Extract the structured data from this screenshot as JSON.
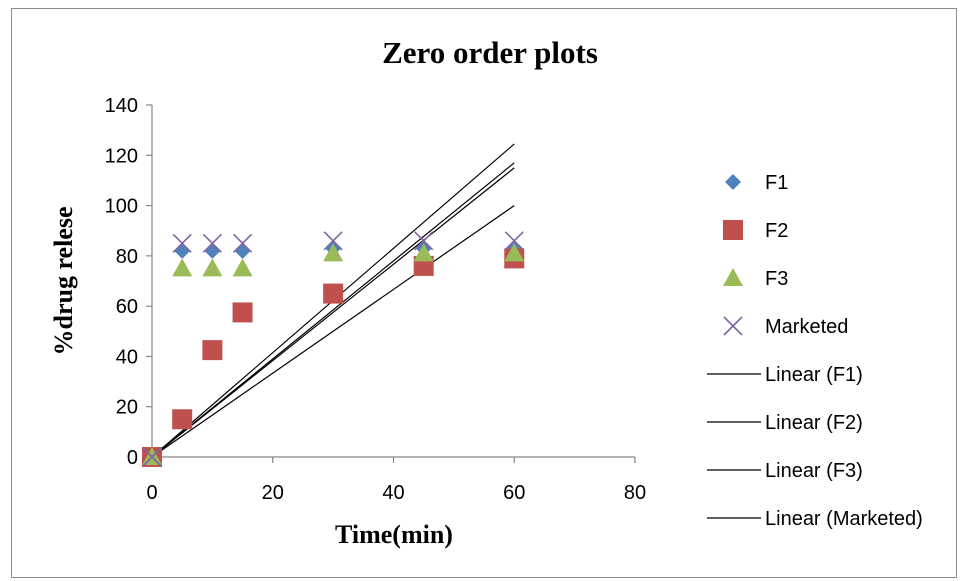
{
  "chart_data": {
    "type": "scatter",
    "title": "Zero order plots",
    "xlabel": "Time(min)",
    "ylabel": "%drug relese",
    "xlim": [
      0,
      80
    ],
    "ylim": [
      0,
      140
    ],
    "xticks": [
      0,
      20,
      40,
      60,
      80
    ],
    "yticks": [
      0,
      20,
      40,
      60,
      80,
      100,
      120,
      140
    ],
    "grid": false,
    "legend_position": "right",
    "series": [
      {
        "name": "F1",
        "marker": "diamond",
        "color": "#4f81bd",
        "x": [
          0,
          5,
          10,
          15,
          30,
          45,
          60
        ],
        "y": [
          0,
          82,
          82,
          82,
          83,
          83,
          83
        ]
      },
      {
        "name": "F2",
        "marker": "square",
        "color": "#c0504d",
        "x": [
          0,
          5,
          10,
          15,
          30,
          45,
          60
        ],
        "y": [
          0,
          15,
          42.5,
          57.5,
          65,
          76,
          79
        ]
      },
      {
        "name": "F3",
        "marker": "triangle",
        "color": "#9bbb59",
        "x": [
          0,
          5,
          10,
          15,
          30,
          45,
          60
        ],
        "y": [
          0,
          75,
          75,
          75,
          81,
          81,
          81
        ]
      },
      {
        "name": "Marketed",
        "marker": "x",
        "color": "#8064a2",
        "x": [
          0,
          5,
          10,
          15,
          30,
          45,
          60
        ],
        "y": [
          0,
          85,
          85,
          85,
          86,
          86,
          86
        ]
      }
    ],
    "trendlines": [
      {
        "name": "Linear (F1)",
        "x": [
          0,
          60
        ],
        "y": [
          0,
          117
        ]
      },
      {
        "name": "Linear (F2)",
        "x": [
          0,
          60
        ],
        "y": [
          0,
          100
        ]
      },
      {
        "name": "Linear (F3)",
        "x": [
          0,
          60
        ],
        "y": [
          0,
          115
        ]
      },
      {
        "name": "Linear (Marketed)",
        "x": [
          0,
          60
        ],
        "y": [
          0,
          124.5
        ]
      }
    ],
    "trendline_color": "#000000"
  }
}
